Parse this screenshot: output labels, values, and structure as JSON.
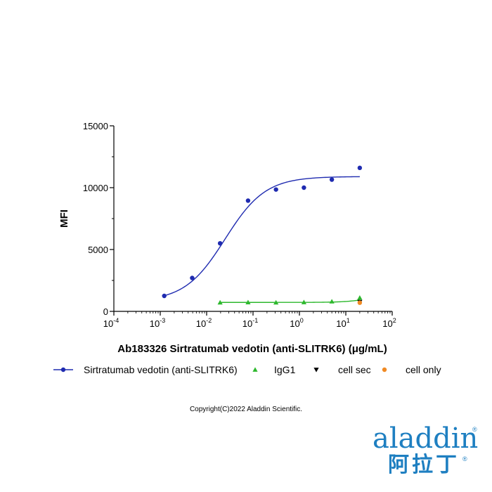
{
  "chart_data": {
    "type": "scatter",
    "title": "",
    "xlabel": "Ab183326 Sirtratumab vedotin (anti-SLITRK6) (μg/mL)",
    "ylabel": "MFI",
    "x_scale": "log",
    "xlim": [
      0.0001,
      100
    ],
    "ylim": [
      0,
      15000
    ],
    "y_ticks": [
      "0",
      "5000",
      "10000",
      "15000"
    ],
    "x_ticks": [
      {
        "base": "10",
        "exp": "-4"
      },
      {
        "base": "10",
        "exp": "-3"
      },
      {
        "base": "10",
        "exp": "-2"
      },
      {
        "base": "10",
        "exp": "-1"
      },
      {
        "base": "10",
        "exp": "0"
      },
      {
        "base": "10",
        "exp": "1"
      },
      {
        "base": "10",
        "exp": "2"
      }
    ],
    "grid": false,
    "legend_position": "bottom",
    "series": [
      {
        "name": "Sirtratumab vedotin (anti-SLITRK6)",
        "color": "#1f2bb0",
        "marker": "circle",
        "fit_curve": true,
        "x": [
          0.00122,
          0.00488,
          0.0195,
          0.0781,
          0.3125,
          1.25,
          5,
          20
        ],
        "y": [
          1250,
          2700,
          5500,
          8950,
          9850,
          10000,
          10650,
          11600
        ]
      },
      {
        "name": "IgG1",
        "color": "#2db82d",
        "marker": "triangle",
        "fit_curve": true,
        "x": [
          0.0195,
          0.0781,
          0.3125,
          1.25,
          5,
          20
        ],
        "y": [
          720,
          730,
          720,
          740,
          800,
          1100
        ]
      },
      {
        "name": "cell sec",
        "color": "#000000",
        "marker": "triangle-down",
        "fit_curve": false,
        "x": [
          20
        ],
        "y": [
          760
        ]
      },
      {
        "name": "cell only",
        "color": "#f08a24",
        "marker": "circle",
        "fit_curve": false,
        "x": [
          20
        ],
        "y": [
          700
        ]
      }
    ]
  },
  "footer": {
    "copyright": "Copyright(C)2022 Aladdin Scientific."
  },
  "logo": {
    "latin": "aladdin",
    "chinese": "阿拉丁",
    "registered": "®",
    "color": "#1e7fc1"
  }
}
